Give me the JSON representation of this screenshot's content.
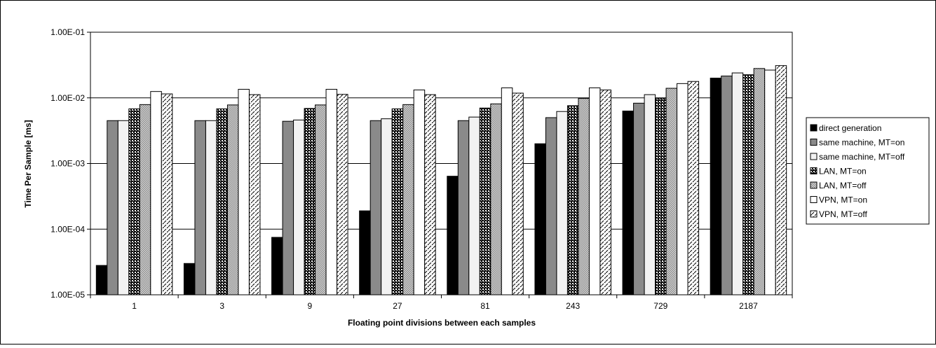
{
  "chart_data": {
    "type": "bar",
    "title": "",
    "xlabel": "Floating point divisions between each samples",
    "ylabel": "Time Per Sample [ms]",
    "y_scale": "log",
    "ylim": [
      1e-05,
      0.1
    ],
    "y_ticks": [
      "1.00E-05",
      "1.00E-04",
      "1.00E-03",
      "1.00E-02",
      "1.00E-01"
    ],
    "grid": "horizontal major gridlines",
    "legend_position": "right",
    "categories": [
      "1",
      "3",
      "9",
      "27",
      "81",
      "243",
      "729",
      "2187"
    ],
    "series": [
      {
        "name": "direct generation",
        "values": [
          2.8e-05,
          3e-05,
          7.5e-05,
          0.00019,
          0.00064,
          0.002,
          0.0063,
          0.02
        ]
      },
      {
        "name": "same machine, MT=on",
        "values": [
          0.0045,
          0.0045,
          0.0044,
          0.0045,
          0.0045,
          0.005,
          0.0083,
          0.0215
        ]
      },
      {
        "name": "same machine, MT=off",
        "values": [
          0.0045,
          0.0045,
          0.0046,
          0.0048,
          0.0051,
          0.0062,
          0.0112,
          0.024
        ]
      },
      {
        "name": "LAN, MT=on",
        "values": [
          0.0068,
          0.0068,
          0.0069,
          0.0068,
          0.007,
          0.0076,
          0.0098,
          0.0225
        ]
      },
      {
        "name": "LAN, MT=off",
        "values": [
          0.0079,
          0.0078,
          0.0078,
          0.0079,
          0.0081,
          0.0098,
          0.014,
          0.028
        ]
      },
      {
        "name": "VPN, MT=on",
        "values": [
          0.0125,
          0.0135,
          0.0135,
          0.0132,
          0.0142,
          0.0142,
          0.0165,
          0.0265
        ]
      },
      {
        "name": "VPN, MT=off",
        "values": [
          0.0115,
          0.0112,
          0.0113,
          0.0112,
          0.0118,
          0.0132,
          0.0178,
          0.031
        ]
      }
    ],
    "series_styles": [
      {
        "fill": "#000000",
        "pattern": "solid"
      },
      {
        "fill": "#8a8a8a",
        "pattern": "solid"
      },
      {
        "fill": "#f2f2f2",
        "pattern": "solid"
      },
      {
        "fill": "#000000",
        "pattern": "black-with-white-dots"
      },
      {
        "fill": "#b0b0b0",
        "pattern": "grey-dots"
      },
      {
        "fill": "#ffffff",
        "pattern": "solid"
      },
      {
        "fill": "#ffffff",
        "pattern": "diagonal-dashes"
      }
    ]
  }
}
